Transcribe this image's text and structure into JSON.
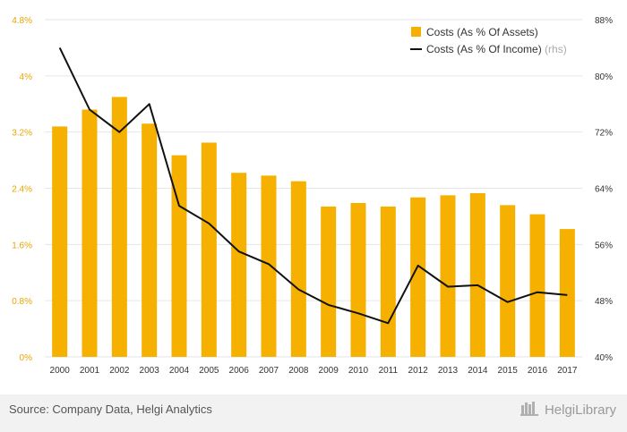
{
  "chart_data": {
    "type": "bar",
    "categories": [
      "2000",
      "2001",
      "2002",
      "2003",
      "2004",
      "2005",
      "2006",
      "2007",
      "2008",
      "2009",
      "2010",
      "2011",
      "2012",
      "2013",
      "2014",
      "2015",
      "2016",
      "2017"
    ],
    "series": [
      {
        "name": "Costs (As % Of Assets)",
        "type": "bar",
        "axis": "left",
        "values": [
          3.28,
          3.52,
          3.7,
          3.32,
          2.87,
          3.05,
          2.62,
          2.58,
          2.5,
          2.14,
          2.19,
          2.14,
          2.27,
          2.3,
          2.33,
          2.16,
          2.03,
          1.82
        ]
      },
      {
        "name": "Costs (As % Of Income)",
        "type": "line",
        "axis": "right",
        "values": [
          84.0,
          75.2,
          72.0,
          76.0,
          61.5,
          59.0,
          55.0,
          53.2,
          49.6,
          47.4,
          46.2,
          44.8,
          53.0,
          50.0,
          50.2,
          47.8,
          49.2,
          48.8
        ]
      }
    ],
    "y_left": {
      "min": 0,
      "max": 4.8,
      "ticks": [
        "0%",
        "0.8%",
        "1.6%",
        "2.4%",
        "3.2%",
        "4%",
        "4.8%"
      ]
    },
    "y_right": {
      "min": 40,
      "max": 88,
      "ticks": [
        "40%",
        "48%",
        "56%",
        "64%",
        "72%",
        "80%",
        "88%"
      ]
    },
    "grid": true,
    "legend": {
      "placement": "top-right",
      "bar_label": "Costs (As % Of Assets)",
      "line_label": "Costs (As % Of Income)",
      "line_suffix": "(rhs)"
    },
    "colors": {
      "bar": "#f5b000",
      "line": "#111111",
      "left_axis_text": "#e8a600",
      "grid": "#e6e6e6"
    }
  },
  "footer": {
    "source": "Source: Company Data, Helgi Analytics",
    "brand": "HelgiLibrary"
  }
}
